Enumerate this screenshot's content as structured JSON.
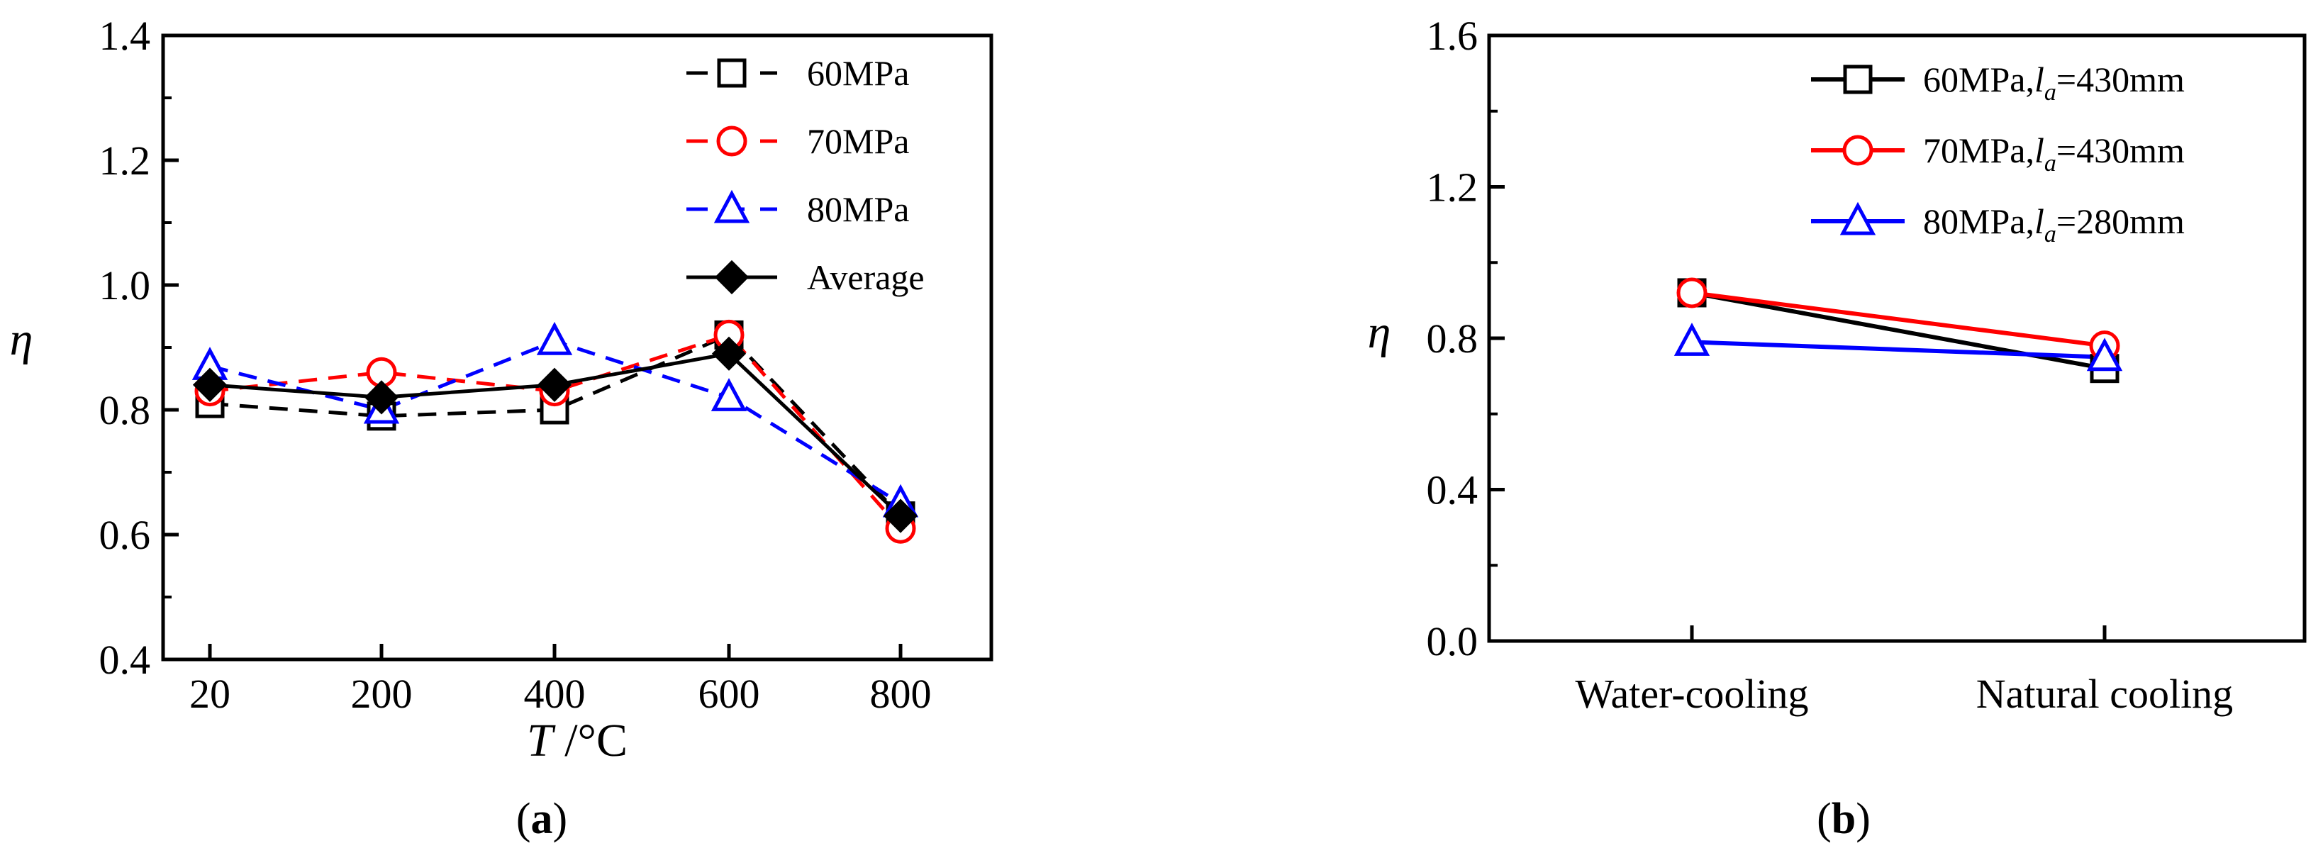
{
  "chart_data": [
    {
      "type": "line",
      "panel": "a",
      "caption_pre": "(",
      "caption_letter": "a",
      "caption_post": ")",
      "xlabel_var": "T",
      "xlabel_unit": " /°C",
      "ylabel": "η",
      "categories": [
        "20",
        "200",
        "400",
        "600",
        "800"
      ],
      "ylim": [
        0.4,
        1.4
      ],
      "yticks": [
        0.4,
        0.6,
        0.8,
        1.0,
        1.2,
        1.4
      ],
      "ytick_labels": [
        "0.4",
        "0.6",
        "0.8",
        "1.0",
        "1.2",
        "1.4"
      ],
      "legend_position": "top-right",
      "series": [
        {
          "name": "60MPa",
          "color": "#000000",
          "dash": true,
          "marker": "square",
          "values": [
            0.81,
            0.79,
            0.8,
            0.92,
            0.63
          ]
        },
        {
          "name": "70MPa",
          "color": "#ff0000",
          "dash": true,
          "marker": "circle",
          "values": [
            0.83,
            0.86,
            0.83,
            0.92,
            0.61
          ]
        },
        {
          "name": "80MPa",
          "color": "#0000ff",
          "dash": true,
          "marker": "triangle",
          "values": [
            0.87,
            0.8,
            0.91,
            0.82,
            0.65
          ]
        },
        {
          "name": "Average",
          "color": "#000000",
          "dash": false,
          "marker": "diamond",
          "values": [
            0.84,
            0.82,
            0.84,
            0.89,
            0.63
          ]
        }
      ]
    },
    {
      "type": "line",
      "panel": "b",
      "caption_pre": "(",
      "caption_letter": "b",
      "caption_post": ")",
      "ylabel": "η",
      "categories": [
        "Water-cooling",
        "Natural cooling"
      ],
      "ylim": [
        0.0,
        1.6
      ],
      "yticks": [
        0.0,
        0.4,
        0.8,
        1.2,
        1.6
      ],
      "ytick_labels": [
        "0.0",
        "0.4",
        "0.8",
        "1.2",
        "1.6"
      ],
      "legend_position": "top-right",
      "series": [
        {
          "name": "60MPa,",
          "la_sub": "a",
          "la_value": "=430mm",
          "color": "#000000",
          "marker": "square",
          "values": [
            0.92,
            0.72
          ]
        },
        {
          "name": "70MPa,",
          "la_sub": "a",
          "la_value": "=430mm",
          "color": "#ff0000",
          "marker": "circle",
          "values": [
            0.92,
            0.78
          ]
        },
        {
          "name": "80MPa,",
          "la_sub": "a",
          "la_value": "=280mm",
          "color": "#0000ff",
          "marker": "triangle",
          "values": [
            0.79,
            0.75
          ]
        }
      ]
    }
  ]
}
